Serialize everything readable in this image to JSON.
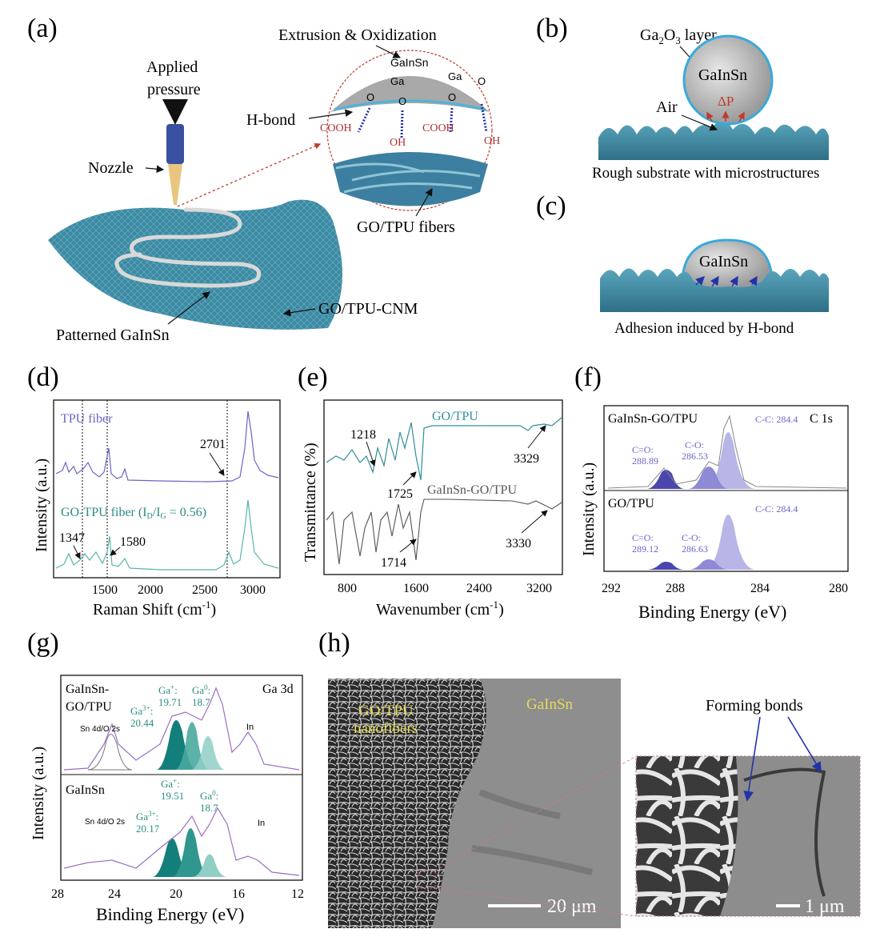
{
  "panels": {
    "a": "(a)",
    "b": "(b)",
    "c": "(c)",
    "d": "(d)",
    "e": "(e)",
    "f": "(f)",
    "g": "(g)",
    "h": "(h)"
  },
  "a": {
    "extrusion": "Extrusion & Oxidization",
    "applied_pressure_1": "Applied",
    "applied_pressure_2": "pressure",
    "nozzle": "Nozzle",
    "hbond": "H-bond",
    "galnsn_top": "GaInSn",
    "ga1": "Ga",
    "ga2": "Ga",
    "o1": "O",
    "o2": "O",
    "o3": "O",
    "o4": "O",
    "cooh1": "COOH",
    "cooh2": "COOH",
    "oh1": "OH",
    "oh2": "OH",
    "fibers": "GO/TPU fibers",
    "cnm": "GO/TPU-CNM",
    "patterned": "Patterned  GaInSn"
  },
  "b": {
    "layer_pre": "Ga",
    "layer_sub1": "2",
    "layer_mid": "O",
    "layer_sub2": "3",
    "layer_post": "  layer",
    "droplet": "GaInSn",
    "air": "Air",
    "dp": "ΔP",
    "caption": "Rough substrate with microstructures"
  },
  "c": {
    "droplet": "GaInSn",
    "caption": "Adhesion induced by H-bond"
  },
  "d": {
    "ylabel": "Intensity (a.u.)",
    "xlabel": "Raman Shift (cm",
    "xlabel_sup": "-1",
    "xlabel_end": ")",
    "tpu": "TPU fiber",
    "gotpu": "GO-TPU  fiber (I",
    "gotpu_sub1": "D",
    "gotpu_mid": "/I",
    "gotpu_sub2": "G",
    "gotpu_end": " = 0.56)",
    "ann_2701": "2701",
    "ann_1347": "1347",
    "ann_1580": "1580",
    "ticks": [
      "1500",
      "2000",
      "2500",
      "3000"
    ]
  },
  "e": {
    "ylabel": "Transmittance (%)",
    "xlabel": "Wavenumber (cm",
    "xlabel_sup": "-1",
    "xlabel_end": ")",
    "gotpu": "GO/TPU",
    "galnsn": "GaInSn-GO/TPU",
    "ann_1218": "1218",
    "ann_1725": "1725",
    "ann_3329": "3329",
    "ann_1714": "1714",
    "ann_3330": "3330",
    "ticks": [
      "800",
      "1600",
      "2400",
      "3200"
    ]
  },
  "f": {
    "ylabel": "Intensity (a.u.)",
    "xlabel": "Binding Energy (eV)",
    "tag": "C 1s",
    "top_title": "GaInSn-GO/TPU",
    "bot_title": "GO/TPU",
    "top_cc": "C-C: 284.4",
    "top_co1": "C=O:",
    "top_co1v": "288.89",
    "top_co2": "C-O:",
    "top_co2v": "286.53",
    "bot_cc": "C-C: 284.4",
    "bot_co1": "C=O:",
    "bot_co1v": "289.12",
    "bot_co2": "C-O:",
    "bot_co2v": "286.63",
    "ticks": [
      "292",
      "288",
      "284",
      "280"
    ]
  },
  "g": {
    "ylabel": "Intensity (a.u.)",
    "xlabel": "Binding Energy (eV)",
    "tag": "Ga 3d",
    "top_title1": "GaInSn-",
    "top_title2": "GO/TPU",
    "bot_title": "GaInSn",
    "top_ga3": "Ga",
    "top_ga3s": "3+",
    "top_ga3c": ":",
    "top_ga3v": "20.44",
    "top_ga1": "Ga",
    "top_ga1s": "+",
    "top_ga1c": ":",
    "top_ga1v": "19.71",
    "top_ga0": "Ga",
    "top_ga0s": "0",
    "top_ga0c": ":",
    "top_ga0v": "18.7",
    "top_sn": "Sn 4d/O 2s",
    "top_in": "In",
    "bot_ga3": "Ga",
    "bot_ga3s": "3+",
    "bot_ga3c": ":",
    "bot_ga3v": "20.17",
    "bot_ga1": "Ga",
    "bot_ga1s": "+",
    "bot_ga1c": ":",
    "bot_ga1v": "19.51",
    "bot_ga0": "Ga",
    "bot_ga0s": "0",
    "bot_ga0c": ":",
    "bot_ga0v": "18.7",
    "bot_sn": "Sn 4d/O 2s",
    "bot_in": "In",
    "ticks": [
      "28",
      "24",
      "20",
      "16",
      "12"
    ]
  },
  "h": {
    "fibers1": "GO/TPU",
    "fibers2": "nanofibers",
    "galnsn": "GaInSn",
    "scale1": "20 μm",
    "scale2": "1 μm",
    "forming": "Forming bonds"
  },
  "colors": {
    "teal": "#2f8f96",
    "substrate": "#3a7f95",
    "purple": "#6a64c8",
    "lavender": "#b7b6e6",
    "deep_teal": "#137f7a",
    "red": "#c0392b"
  }
}
